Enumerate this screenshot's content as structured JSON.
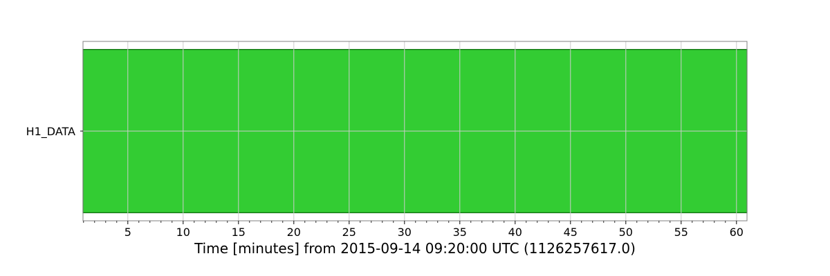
{
  "chart_data": {
    "type": "bar",
    "orientation": "horizontal",
    "title": "",
    "xlabel": "Time [minutes] from 2015-09-14 09:20:00 UTC (1126257617.0)",
    "ylabel": "",
    "xlim": [
      0.95,
      60.95
    ],
    "x_major_ticks": [
      5,
      10,
      15,
      20,
      25,
      30,
      35,
      40,
      45,
      50,
      55,
      60
    ],
    "x_minor_step": 1,
    "grid": true,
    "categories": [
      "H1_DATA"
    ],
    "segments": [
      {
        "category": "H1_DATA",
        "start": 0.95,
        "end": 60.95
      }
    ],
    "colors": {
      "segment_fill": "#33cc33",
      "segment_edge": "#006400",
      "grid": "#cccccc",
      "frame": "#808080"
    }
  }
}
